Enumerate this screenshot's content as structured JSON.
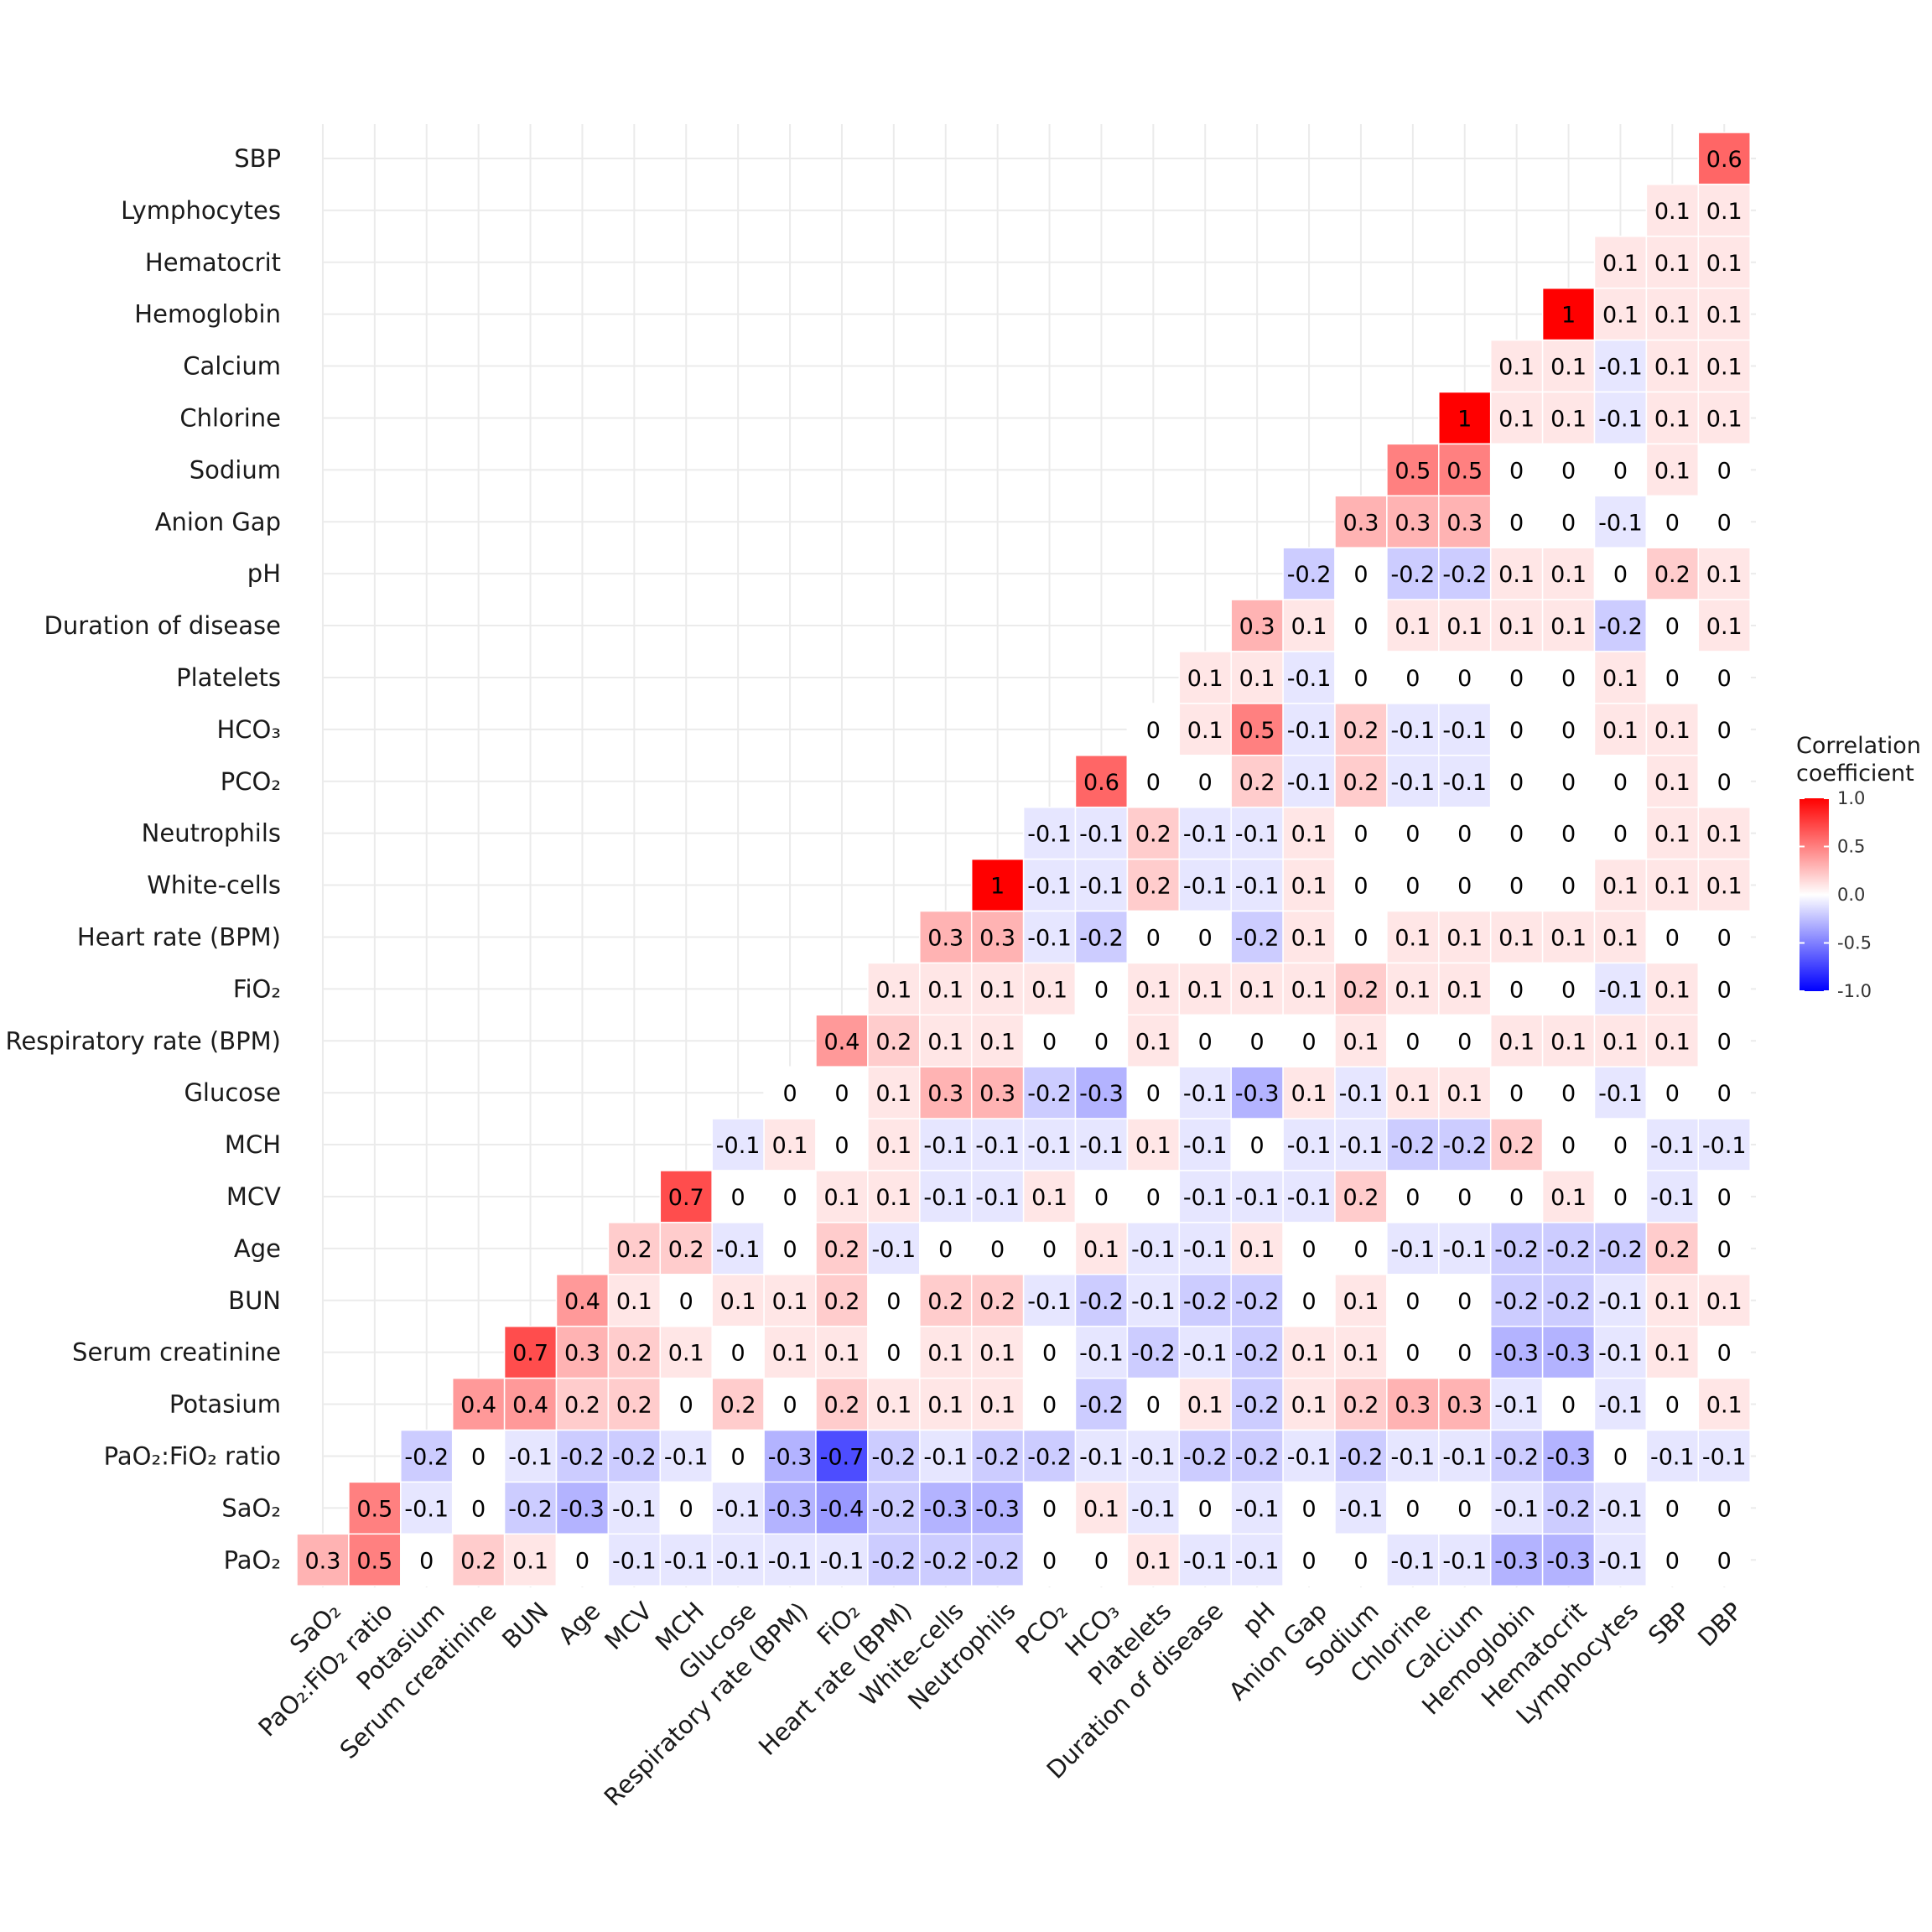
{
  "chart_data": {
    "type": "heatmap",
    "x_categories": [
      "SaO2",
      "PaO2:FiO2 ratio",
      "Potasium",
      "Serum creatinine",
      "BUN",
      "Age",
      "MCV",
      "MCH",
      "Glucose",
      "Respiratory rate (BPM)",
      "FiO2",
      "Heart rate (BPM)",
      "White-cells",
      "Neutrophils",
      "PCO2",
      "HCO3",
      "Platelets",
      "Duration of disease",
      "pH",
      "Anion Gap",
      "Sodium",
      "Chlorine",
      "Calcium",
      "Hemoglobin",
      "Hematocrit",
      "Lymphocytes",
      "SBP",
      "DBP"
    ],
    "y_categories_top_to_bottom": [
      "SBP",
      "Lymphocytes",
      "Hematocrit",
      "Hemoglobin",
      "Calcium",
      "Chlorine",
      "Sodium",
      "Anion Gap",
      "pH",
      "Duration of disease",
      "Platelets",
      "HCO3",
      "PCO2",
      "Neutrophils",
      "White-cells",
      "Heart rate (BPM)",
      "FiO2",
      "Respiratory rate (BPM)",
      "Glucose",
      "MCH",
      "MCV",
      "Age",
      "BUN",
      "Serum creatinine",
      "Potasium",
      "PaO2:FiO2 ratio",
      "SaO2",
      "PaO2"
    ],
    "x_display": [
      "SaO₂",
      "PaO₂:FiO₂ ratio",
      "Potasium",
      "Serum creatinine",
      "BUN",
      "Age",
      "MCV",
      "MCH",
      "Glucose",
      "Respiratory rate (BPM)",
      "FiO₂",
      "Heart rate (BPM)",
      "White-cells",
      "Neutrophils",
      "PCO₂",
      "HCO₃",
      "Platelets",
      "Duration of disease",
      "pH",
      "Anion Gap",
      "Sodium",
      "Chlorine",
      "Calcium",
      "Hemoglobin",
      "Hematocrit",
      "Lymphocytes",
      "SBP",
      "DBP"
    ],
    "y_display": [
      "SBP",
      "Lymphocytes",
      "Hematocrit",
      "Hemoglobin",
      "Calcium",
      "Chlorine",
      "Sodium",
      "Anion Gap",
      "pH",
      "Duration of disease",
      "Platelets",
      "HCO₃",
      "PCO₂",
      "Neutrophils",
      "White-cells",
      "Heart rate (BPM)",
      "FiO₂",
      "Respiratory rate (BPM)",
      "Glucose",
      "MCH",
      "MCV",
      "Age",
      "BUN",
      "Serum creatinine",
      "Potasium",
      "PaO₂:FiO₂ ratio",
      "SaO₂",
      "PaO₂"
    ],
    "values_by_row": [
      [
        0.6
      ],
      [
        0.1,
        0.1
      ],
      [
        0.1,
        0.1,
        0.1
      ],
      [
        1,
        0.1,
        0.1,
        0.1
      ],
      [
        0.1,
        0.1,
        -0.1,
        0.1,
        0.1
      ],
      [
        1,
        0.1,
        0.1,
        -0.1,
        0.1,
        0.1
      ],
      [
        0.5,
        0.5,
        0,
        0,
        0,
        0.1,
        0
      ],
      [
        0.3,
        0.3,
        0.3,
        0,
        0,
        -0.1,
        0,
        0
      ],
      [
        -0.2,
        0,
        -0.2,
        -0.2,
        0.1,
        0.1,
        0,
        0.2,
        0.1
      ],
      [
        0.3,
        0.1,
        0,
        0.1,
        0.1,
        0.1,
        0.1,
        -0.2,
        0,
        0.1
      ],
      [
        0.1,
        0.1,
        -0.1,
        0,
        0,
        0,
        0,
        0,
        0.1,
        0,
        0
      ],
      [
        0,
        0.1,
        0.5,
        -0.1,
        0.2,
        -0.1,
        -0.1,
        0,
        0,
        0.1,
        0.1,
        0
      ],
      [
        0.6,
        0,
        0,
        0.2,
        -0.1,
        0.2,
        -0.1,
        -0.1,
        0,
        0,
        0,
        0.1,
        0
      ],
      [
        -0.1,
        -0.1,
        0.2,
        -0.1,
        -0.1,
        0.1,
        0,
        0,
        0,
        0,
        0,
        0,
        0.1,
        0.1
      ],
      [
        1,
        -0.1,
        -0.1,
        0.2,
        -0.1,
        -0.1,
        0.1,
        0,
        0,
        0,
        0,
        0,
        0.1,
        0.1,
        0.1
      ],
      [
        0.3,
        0.3,
        -0.1,
        -0.2,
        0,
        0,
        -0.2,
        0.1,
        0,
        0.1,
        0.1,
        0.1,
        0.1,
        0.1,
        0,
        0
      ],
      [
        0.1,
        0.1,
        0.1,
        0.1,
        0,
        0.1,
        0.1,
        0.1,
        0.1,
        0.2,
        0.1,
        0.1,
        0,
        0,
        -0.1,
        0.1,
        0
      ],
      [
        0.4,
        0.2,
        0.1,
        0.1,
        0,
        0,
        0.1,
        0,
        0,
        0,
        0.1,
        0,
        0,
        0.1,
        0.1,
        0.1,
        0.1,
        0
      ],
      [
        0,
        0,
        0.1,
        0.3,
        0.3,
        -0.2,
        -0.3,
        0,
        -0.1,
        -0.3,
        0.1,
        -0.1,
        0.1,
        0.1,
        0,
        0,
        -0.1,
        0,
        0
      ],
      [
        -0.1,
        0.1,
        0,
        0.1,
        -0.1,
        -0.1,
        -0.1,
        -0.1,
        0.1,
        -0.1,
        0,
        -0.1,
        -0.1,
        -0.2,
        -0.2,
        0.2,
        0,
        0,
        -0.1,
        -0.1
      ],
      [
        0.7,
        0,
        0,
        0.1,
        0.1,
        -0.1,
        -0.1,
        0.1,
        0,
        0,
        -0.1,
        -0.1,
        -0.1,
        0.2,
        0,
        0,
        0,
        0.1,
        0,
        -0.1,
        0
      ],
      [
        0.2,
        0.2,
        -0.1,
        0,
        0.2,
        -0.1,
        0,
        0,
        0,
        0.1,
        -0.1,
        -0.1,
        0.1,
        0,
        0,
        -0.1,
        -0.1,
        -0.2,
        -0.2,
        -0.2,
        0.2,
        0
      ],
      [
        0.4,
        0.1,
        0,
        0.1,
        0.1,
        0.2,
        0,
        0.2,
        0.2,
        -0.1,
        -0.2,
        -0.1,
        -0.2,
        -0.2,
        0,
        0.1,
        0,
        0,
        -0.2,
        -0.2,
        -0.1,
        0.1,
        0.1
      ],
      [
        0.7,
        0.3,
        0.2,
        0.1,
        0,
        0.1,
        0.1,
        0,
        0.1,
        0.1,
        0,
        -0.1,
        -0.2,
        -0.1,
        -0.2,
        0.1,
        0.1,
        0,
        0,
        -0.3,
        -0.3,
        -0.1,
        0.1,
        0
      ],
      [
        0.4,
        0.4,
        0.2,
        0.2,
        0,
        0.2,
        0,
        0.2,
        0.1,
        0.1,
        0.1,
        0,
        -0.2,
        0,
        0.1,
        -0.2,
        0.1,
        0.2,
        0.3,
        0.3,
        -0.1,
        0,
        -0.1,
        0,
        0.1
      ],
      [
        -0.2,
        0,
        -0.1,
        -0.2,
        -0.2,
        -0.1,
        0,
        -0.3,
        -0.7,
        -0.2,
        -0.1,
        -0.2,
        -0.2,
        -0.1,
        -0.1,
        -0.2,
        -0.2,
        -0.1,
        -0.2,
        -0.1,
        -0.1,
        -0.2,
        -0.3,
        0,
        -0.1,
        -0.1
      ],
      [
        0.5,
        -0.1,
        0,
        -0.2,
        -0.3,
        -0.1,
        0,
        -0.1,
        -0.3,
        -0.4,
        -0.2,
        -0.3,
        -0.3,
        0,
        0.1,
        -0.1,
        0,
        -0.1,
        0,
        -0.1,
        0,
        0,
        -0.1,
        -0.2,
        -0.1,
        0,
        0
      ],
      [
        0.3,
        0.5,
        0,
        0.2,
        0.1,
        0,
        -0.1,
        -0.1,
        -0.1,
        -0.1,
        -0.1,
        -0.2,
        -0.2,
        -0.2,
        0,
        0,
        0.1,
        -0.1,
        -0.1,
        0,
        0,
        -0.1,
        -0.1,
        -0.3,
        -0.3,
        -0.1,
        0,
        0
      ]
    ],
    "color_scale": {
      "low": "#0000ff",
      "mid": "#ffffff",
      "high": "#ff0000",
      "limits": [
        -1,
        1
      ]
    },
    "legend": {
      "title_lines": [
        "Correlation",
        "coefficient"
      ],
      "ticks": [
        1.0,
        0.5,
        0.0,
        -0.5,
        -1.0
      ],
      "tick_labels": [
        "1.0",
        "0.5",
        "0.0",
        "-0.5",
        "-1.0"
      ],
      "placement": "right"
    },
    "grid": true
  }
}
